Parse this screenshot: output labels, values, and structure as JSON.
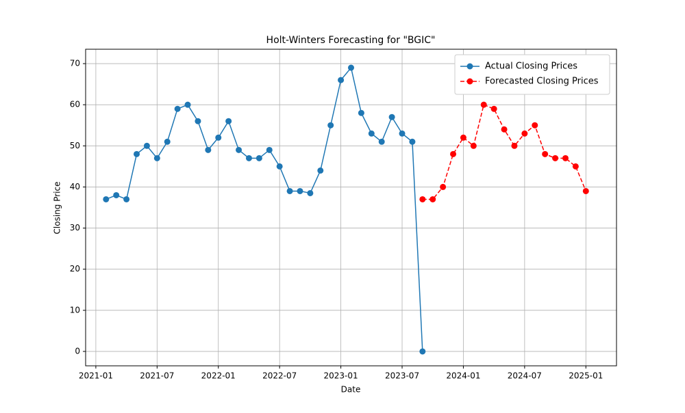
{
  "chart_data": {
    "type": "line",
    "title": "Holt-Winters Forecasting for \"BGIC\"",
    "xlabel": "Date",
    "ylabel": "Closing Price",
    "xlim": [
      "2020-12",
      "2025-04"
    ],
    "xticks": [
      "2021-01",
      "2021-07",
      "2022-01",
      "2022-07",
      "2023-01",
      "2023-07",
      "2024-01",
      "2024-07",
      "2025-01"
    ],
    "ylim": [
      -3.5,
      73.5
    ],
    "yticks": [
      0,
      10,
      20,
      30,
      40,
      50,
      60,
      70
    ],
    "grid": true,
    "legend": "upper right",
    "series": [
      {
        "name": "Actual Closing Prices",
        "color": "#1f77b4",
        "linestyle": "solid",
        "x": [
          "2021-02",
          "2021-03",
          "2021-04",
          "2021-05",
          "2021-06",
          "2021-07",
          "2021-08",
          "2021-09",
          "2021-10",
          "2021-11",
          "2021-12",
          "2022-01",
          "2022-02",
          "2022-03",
          "2022-04",
          "2022-05",
          "2022-06",
          "2022-07",
          "2022-08",
          "2022-09",
          "2022-10",
          "2022-11",
          "2022-12",
          "2023-01",
          "2023-02",
          "2023-03",
          "2023-04",
          "2023-05",
          "2023-06",
          "2023-07",
          "2023-08",
          "2023-09"
        ],
        "values": [
          37,
          38,
          37,
          48,
          50,
          47,
          51,
          59,
          60,
          56,
          49,
          52,
          56,
          49,
          47,
          47,
          49,
          45,
          39,
          39,
          38.5,
          44,
          55,
          66,
          69,
          58,
          53,
          51,
          57,
          53,
          51,
          0
        ]
      },
      {
        "name": "Forecasted Closing Prices",
        "color": "#ff0000",
        "linestyle": "dashed",
        "x": [
          "2023-09",
          "2023-10",
          "2023-11",
          "2023-12",
          "2024-01",
          "2024-02",
          "2024-03",
          "2024-04",
          "2024-05",
          "2024-06",
          "2024-07",
          "2024-08",
          "2024-09",
          "2024-10",
          "2024-11",
          "2024-12",
          "2025-01"
        ],
        "values": [
          37,
          37,
          40,
          48,
          52,
          50,
          60,
          59,
          54,
          50,
          53,
          55,
          48,
          47,
          47,
          45,
          39
        ]
      }
    ]
  }
}
